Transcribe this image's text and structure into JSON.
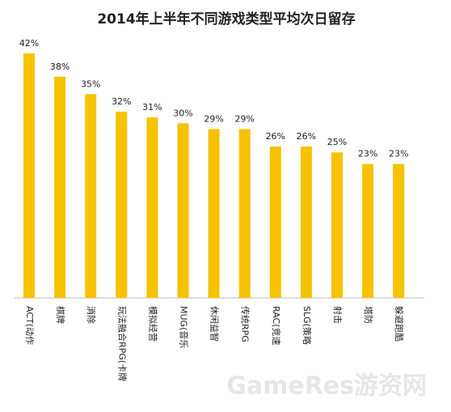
{
  "chart_data": {
    "type": "bar",
    "title": "2014年上半年不同游戏类型平均次日留存",
    "categories": [
      "ACT(动作",
      "棋牌",
      "消除",
      "玩法融合RPG(卡牌",
      "模拟经营",
      "MUG(音乐",
      "休闲益智",
      "传统RPG",
      "RAC(竞速",
      "SLG(策略",
      "射击",
      "塔防",
      "躲避跑酷"
    ],
    "values": [
      42,
      38,
      35,
      32,
      31,
      30,
      29,
      29,
      26,
      26,
      25,
      23,
      23
    ],
    "value_labels": [
      "42%",
      "38%",
      "35%",
      "32%",
      "31%",
      "30%",
      "29%",
      "29%",
      "26%",
      "26%",
      "25%",
      "23%",
      "23%"
    ],
    "color": "#f7c200",
    "watermark": "GameRes游资网"
  }
}
